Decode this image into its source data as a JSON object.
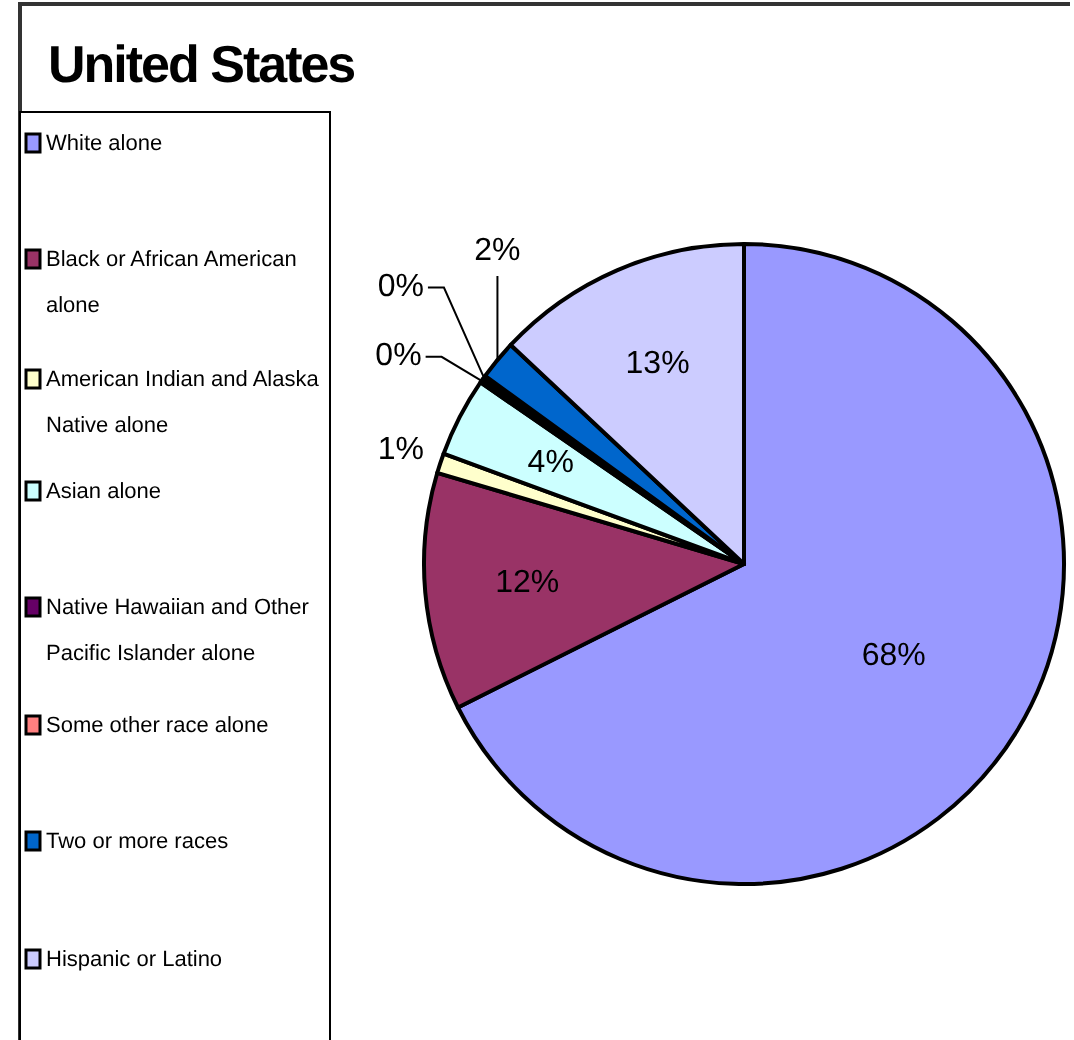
{
  "chart_data": {
    "type": "pie",
    "title": "United States",
    "categories": [
      "White alone",
      "Black or African American alone",
      "American Indian and Alaska Native alone",
      "Asian alone",
      "Native Hawaiian and Other Pacific Islander alone",
      "Some other race alone",
      "Two or more races",
      "Hispanic or Latino"
    ],
    "values": [
      67.6,
      12,
      1,
      4,
      0.2,
      0.2,
      2,
      13
    ],
    "value_labels": [
      "68%",
      "12%",
      "1%",
      "4%",
      "0%",
      "0%",
      "2%",
      "13%"
    ],
    "colors": [
      "#9999ff",
      "#993366",
      "#ffffcc",
      "#ccffff",
      "#660066",
      "#ff8080",
      "#0066cc",
      "#ccccff"
    ],
    "legend": "left"
  }
}
